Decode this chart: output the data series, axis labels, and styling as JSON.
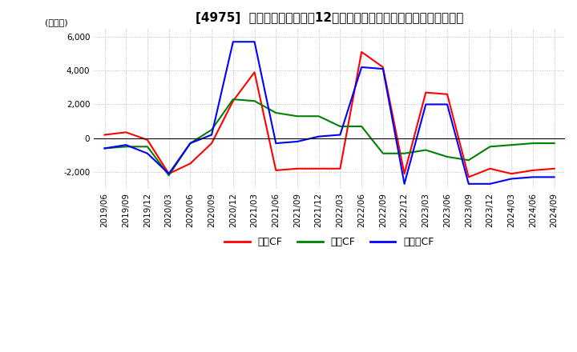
{
  "title": "[4975]  キャッシュフローの12か月移動合計の対前年同期増減額の推移",
  "ylabel": "(百万円)",
  "ylim": [
    -3000,
    6500
  ],
  "yticks": [
    -2000,
    0,
    2000,
    4000,
    6000
  ],
  "legend_labels": [
    "営業CF",
    "投資CF",
    "フリーCF"
  ],
  "line_colors": [
    "#ff0000",
    "#008000",
    "#0000ff"
  ],
  "dates": [
    "2019/06",
    "2019/09",
    "2019/12",
    "2020/03",
    "2020/06",
    "2020/09",
    "2020/12",
    "2021/03",
    "2021/06",
    "2021/09",
    "2021/12",
    "2022/03",
    "2022/06",
    "2022/09",
    "2022/12",
    "2023/03",
    "2023/06",
    "2023/09",
    "2023/12",
    "2024/03",
    "2024/06",
    "2024/09"
  ],
  "operating_cf": [
    200,
    350,
    -100,
    -2100,
    -1500,
    -300,
    2200,
    3900,
    -1900,
    -1800,
    -1800,
    -1800,
    5100,
    4200,
    -2100,
    2700,
    2600,
    -2300,
    -1800,
    -2100,
    -1900,
    -1800
  ],
  "investing_cf": [
    -600,
    -500,
    -500,
    -2200,
    -300,
    500,
    2300,
    2200,
    1500,
    1300,
    1300,
    700,
    700,
    -900,
    -900,
    -700,
    -1100,
    -1300,
    -500,
    -400,
    -300,
    -300
  ],
  "free_cf": [
    -600,
    -400,
    -900,
    -2100,
    -300,
    200,
    5700,
    5700,
    -300,
    -200,
    100,
    200,
    4200,
    4100,
    -2700,
    2000,
    2000,
    -2700,
    -2700,
    -2400,
    -2300,
    -2300
  ],
  "background_color": "#ffffff",
  "grid_color": "#aaaaaa",
  "title_fontsize": 11,
  "label_fontsize": 8,
  "tick_fontsize": 7.5,
  "legend_fontsize": 9
}
